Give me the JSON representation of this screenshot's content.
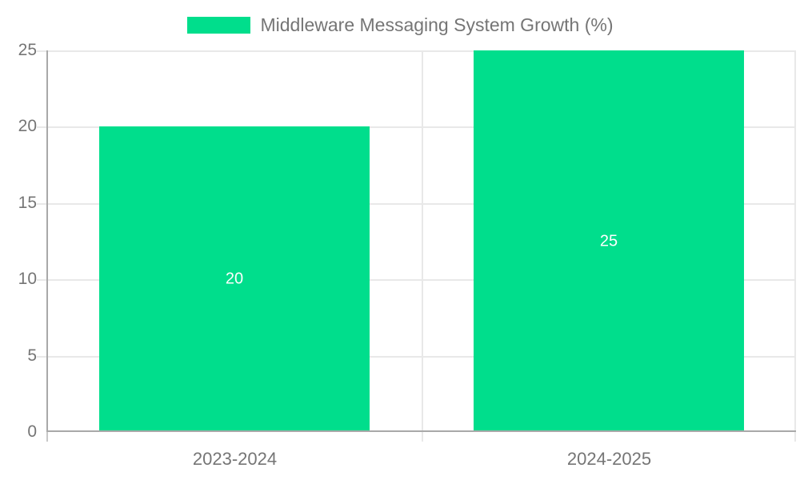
{
  "legend": {
    "label": "Middleware Messaging System Growth (%)"
  },
  "colors": {
    "bar": "#00de8c",
    "axis_line": "#a9a9a9",
    "gridline": "#e8e8e8",
    "tick_label": "#757575",
    "data_label": "#ffffff",
    "background": "#ffffff"
  },
  "chart_data": {
    "type": "bar",
    "title": "Middleware Messaging System Growth (%)",
    "categories": [
      "2023-2024",
      "2024-2025"
    ],
    "values": [
      20,
      25
    ],
    "series": [
      {
        "name": "Middleware Messaging System Growth (%)",
        "values": [
          20,
          25
        ]
      }
    ],
    "xlabel": "",
    "ylabel": "",
    "ylim": [
      0,
      25
    ],
    "yticks": [
      0,
      5,
      10,
      15,
      20,
      25
    ],
    "grid": true,
    "legend_position": "top-center",
    "data_labels_shown": true
  }
}
